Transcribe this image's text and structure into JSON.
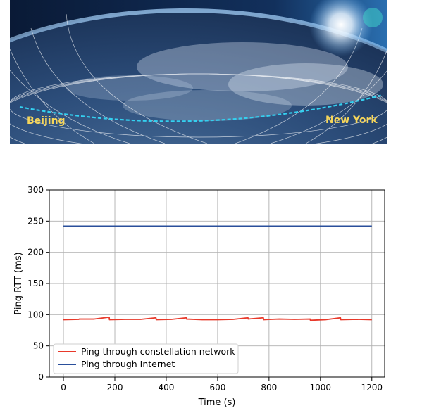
{
  "banner": {
    "city_left": "Beijing",
    "city_right": "New York"
  },
  "chart_data": {
    "type": "line",
    "xlabel": "Time (s)",
    "ylabel": "Ping  RTT (ms)",
    "xlim": [
      -55,
      1250
    ],
    "ylim": [
      0,
      300
    ],
    "xticks": [
      0,
      200,
      400,
      600,
      800,
      1000,
      1200
    ],
    "yticks": [
      0,
      50,
      100,
      150,
      200,
      250,
      300
    ],
    "grid": true,
    "legend_position": "lower-left",
    "series": [
      {
        "name": "Ping through constellation network",
        "color": "#e8392a",
        "x": [
          0,
          60,
          61,
          120,
          178,
          179,
          240,
          300,
          360,
          361,
          420,
          478,
          479,
          540,
          600,
          660,
          718,
          719,
          778,
          779,
          840,
          900,
          960,
          961,
          1020,
          1078,
          1079,
          1140,
          1200
        ],
        "y": [
          92,
          92.5,
          93,
          93,
          96,
          92,
          92.5,
          92.5,
          95,
          92,
          92.5,
          95,
          93,
          92,
          92,
          92.5,
          95,
          93,
          95,
          92,
          93,
          92.5,
          93,
          91,
          92,
          95,
          92,
          92.5,
          92
        ]
      },
      {
        "name": "Ping through Internet",
        "color": "#2a4f9b",
        "x": [
          0,
          1200
        ],
        "y": [
          242,
          242
        ]
      }
    ]
  },
  "colors": {
    "grid": "#b0b0b0",
    "sky_top": "#0a1e3c",
    "earth": "#1f3c68"
  }
}
